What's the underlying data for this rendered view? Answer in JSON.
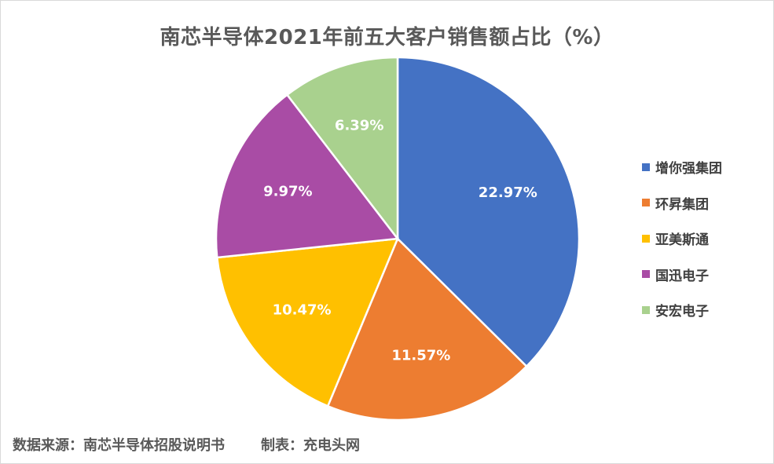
{
  "chart_data": {
    "type": "pie",
    "title": "南芯半导体2021年前五大客户销售额占比（%）",
    "categories": [
      "增你强集团",
      "环昇集团",
      "亚美斯通",
      "国迅电子",
      "安宏电子"
    ],
    "values": [
      22.97,
      11.57,
      10.47,
      9.97,
      6.39
    ],
    "labels": [
      "22.97%",
      "11.57%",
      "10.47%",
      "9.97%",
      "6.39%"
    ],
    "colors": [
      "#4472C4",
      "#ED7D31",
      "#FFC000",
      "#A94CA5",
      "#A9D18E"
    ],
    "legend_position": "right"
  },
  "footer": {
    "source": "数据来源：南芯半导体招股说明书",
    "maker": "制表：充电头网"
  }
}
